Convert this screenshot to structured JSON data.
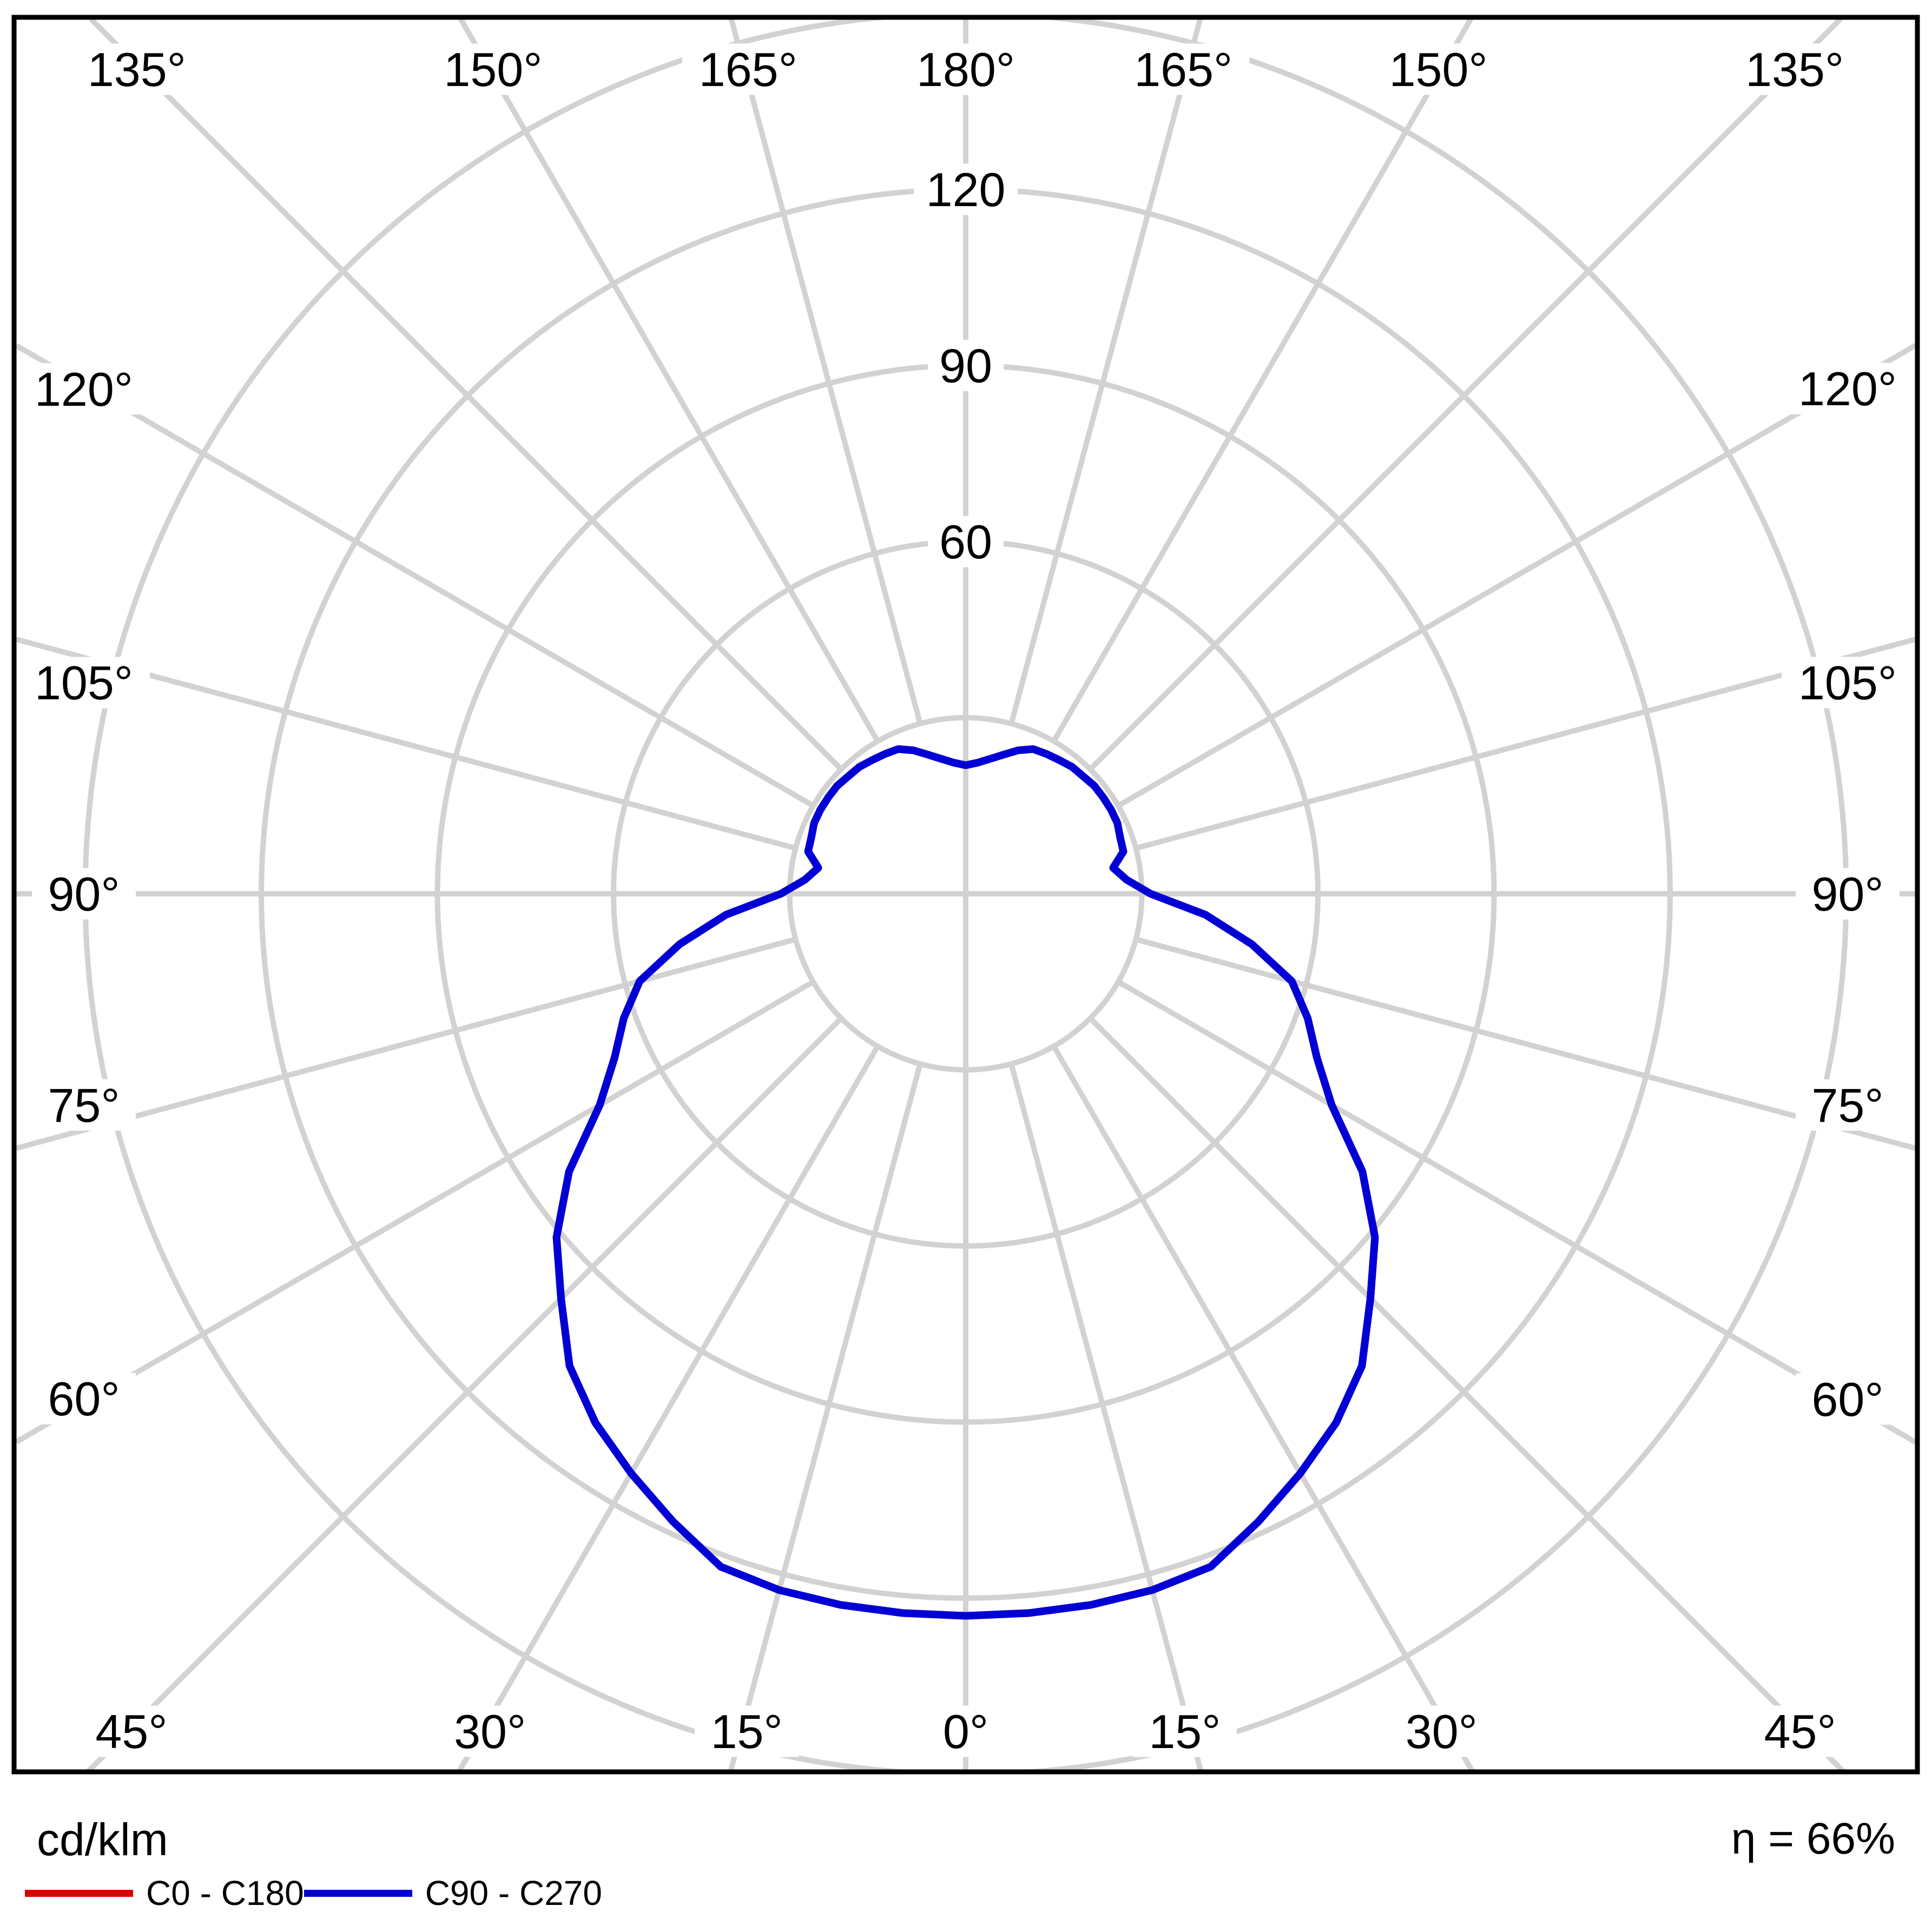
{
  "chart_data": {
    "type": "line",
    "variant": "photometric-polar",
    "title": "",
    "radial_unit": "cd/klm",
    "radial_circles": [
      30,
      60,
      90,
      120,
      150
    ],
    "radial_tick_labels": [
      60,
      90,
      120
    ],
    "radial_max": 150,
    "angle_grid_step_deg": 15,
    "angle_labels_deg": [
      0,
      15,
      30,
      45,
      60,
      75,
      90,
      105,
      120,
      135,
      150,
      165,
      180
    ],
    "gamma_start_deg": 0,
    "gamma_end_deg": 180,
    "gamma_step_deg": 5,
    "grid_color": "#d2d2d2",
    "series": [
      {
        "name": "C0 - C180",
        "color": "#d90000",
        "values": [
          123,
          123,
          123,
          122.8,
          122,
          118,
          114,
          110,
          105,
          97.5,
          91,
          82.5,
          72,
          66,
          62,
          57.5,
          49.5,
          41,
          31.5,
          27.5,
          25.5,
          27.8,
          28,
          28.5,
          28.6,
          28.6,
          28.6,
          28.3,
          28.2,
          27.8,
          27.5,
          27.2,
          26,
          24.5,
          23.3,
          22.4,
          21.9
        ]
      },
      {
        "name": "C90 - C270",
        "color": "#0000d6",
        "values": [
          123,
          123,
          123,
          122.8,
          122,
          118,
          114,
          110,
          105,
          97.5,
          91,
          82.5,
          72,
          66,
          62,
          57.5,
          49.5,
          41,
          31.5,
          27.5,
          25.5,
          27.8,
          28,
          28.5,
          28.6,
          28.6,
          28.6,
          28.3,
          28.2,
          27.8,
          27.5,
          27.2,
          26,
          24.5,
          23.3,
          22.4,
          21.9
        ]
      }
    ],
    "legend_position": "bottom-left",
    "annotations": {
      "efficiency": "η = 66%",
      "unit_label": "cd/klm"
    }
  },
  "footer": {
    "unit_label": "cd/klm",
    "efficiency_label": "η = 66%"
  },
  "legend": {
    "items": [
      {
        "label": "C0 - C180",
        "color": "#d90000"
      },
      {
        "label": "C90 - C270",
        "color": "#0000d6"
      }
    ]
  }
}
